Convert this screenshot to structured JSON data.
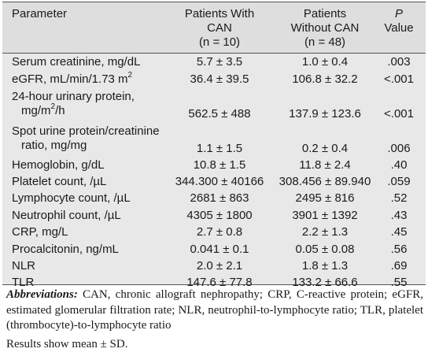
{
  "table": {
    "headers": {
      "parameter": "Parameter",
      "can": [
        "Patients With",
        "CAN",
        "(n = 10)"
      ],
      "no_can": [
        "Patients",
        "Without CAN",
        "(n = 48)"
      ],
      "p_value": [
        "P",
        "Value"
      ]
    },
    "rows": [
      {
        "label": [
          "Serum creatinine, mg/dL"
        ],
        "can": "5.7 ± 3.5",
        "no_can": "1.0 ± 0.4",
        "p": ".003"
      },
      {
        "label": [
          "eGFR, mL/min/1.73 m"
        ],
        "sup": "2",
        "can": "36.4 ± 39.5",
        "no_can": "106.8 ± 32.2",
        "p": "<.001"
      },
      {
        "label": [
          "24-hour urinary protein,",
          "mg/m"
        ],
        "sup": "2",
        "label_tail": "/h",
        "can": "562.5 ± 488",
        "no_can": "137.9 ± 123.6",
        "p": "<.001"
      },
      {
        "label": [
          "Spot urine protein/creatinine",
          "ratio, mg/mg"
        ],
        "can": "1.1 ± 1.5",
        "no_can": "0.2 ± 0.4",
        "p": ".006"
      },
      {
        "label": [
          "Hemoglobin, g/dL"
        ],
        "can": "10.8 ± 1.5",
        "no_can": "11.8 ± 2.4",
        "p": ".40"
      },
      {
        "label": [
          "Platelet count, /µL"
        ],
        "can": "344.300 ± 40166",
        "no_can": "308.456 ± 89.940",
        "p": ".059"
      },
      {
        "label": [
          "Lymphocyte count, /µL"
        ],
        "can": "2681 ± 863",
        "no_can": "2495 ± 816",
        "p": ".52"
      },
      {
        "label": [
          "Neutrophil count, /µL"
        ],
        "can": "4305 ± 1800",
        "no_can": "3901 ± 1392",
        "p": ".43"
      },
      {
        "label": [
          "CRP, mg/L"
        ],
        "can": "2.7 ± 0.8",
        "no_can": "2.2 ± 1.3",
        "p": ".45"
      },
      {
        "label": [
          "Procalcitonin, ng/mL"
        ],
        "can": "0.041 ± 0.1",
        "no_can": "0.05 ± 0.08",
        "p": ".56"
      },
      {
        "label": [
          "NLR"
        ],
        "can": "2.0 ± 2.1",
        "no_can": "1.8 ± 1.3",
        "p": ".69"
      },
      {
        "label": [
          "TLR"
        ],
        "can": "147.6 ± 77.8",
        "no_can": "133.2 ± 66.6",
        "p": ".55"
      }
    ]
  },
  "footnote": {
    "label": "Abbreviations:",
    "text": " CAN, chronic allograft nephropathy; CRP, C-reactive protein; eGFR, estimated glomerular filtration rate; NLR, neutrophil-to-lymphocyte ratio; TLR, platelet (thrombocyte)-to-lymphocyte ratio"
  },
  "results_note": "Results show mean ± SD."
}
